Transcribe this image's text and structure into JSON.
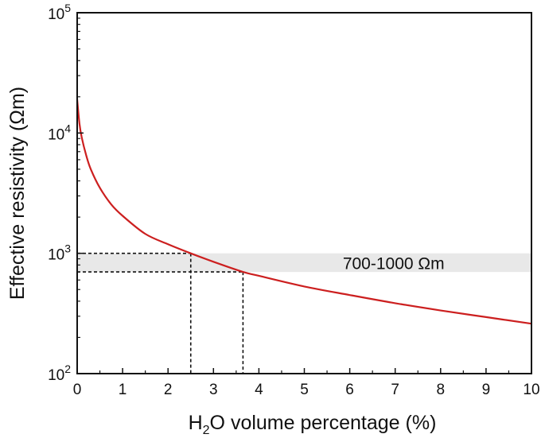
{
  "chart_data": {
    "type": "line",
    "xlabel_main": "H",
    "xlabel_sub": "2",
    "xlabel_rest": "O volume percentage (%)",
    "ylabel": "Effective resistivity (Ωm)",
    "y_scale": "log",
    "xlim": [
      0,
      10
    ],
    "ylim": [
      100,
      100000
    ],
    "x_ticks": [
      0,
      1,
      2,
      3,
      4,
      5,
      6,
      7,
      8,
      9,
      10
    ],
    "x_tick_labels": [
      "0",
      "1",
      "2",
      "3",
      "4",
      "5",
      "6",
      "7",
      "8",
      "9",
      "10"
    ],
    "y_ticks": [
      {
        "value": 100,
        "base": "10",
        "exp": "2"
      },
      {
        "value": 1000,
        "base": "10",
        "exp": "3"
      },
      {
        "value": 10000,
        "base": "10",
        "exp": "4"
      },
      {
        "value": 100000,
        "base": "10",
        "exp": "5"
      }
    ],
    "grid": false,
    "series": [
      {
        "color": "#cc1f1f",
        "x": [
          0.0,
          0.05,
          0.1,
          0.2,
          0.3,
          0.5,
          0.75,
          1.0,
          1.5,
          2.0,
          2.5,
          3.0,
          3.65,
          4.0,
          5.0,
          6.0,
          7.0,
          8.0,
          9.0,
          10.0
        ],
        "y": [
          19000,
          12000,
          9200,
          6500,
          5000,
          3500,
          2550,
          2050,
          1450,
          1190,
          1000,
          850,
          700,
          650,
          530,
          450,
          385,
          335,
          295,
          260
        ]
      }
    ],
    "band": {
      "y_low": 700,
      "y_high": 1000,
      "label": "700-1000 Ωm",
      "color": "#e8e8e8"
    },
    "reference_lines": [
      {
        "x": 2.5,
        "y": 1000
      },
      {
        "x": 3.65,
        "y": 700
      }
    ]
  }
}
